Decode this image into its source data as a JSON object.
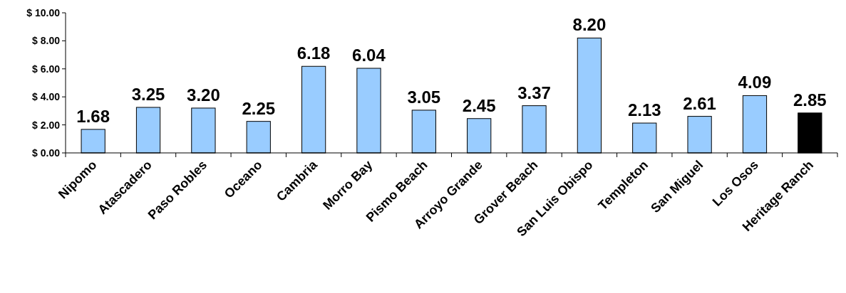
{
  "chart_data": {
    "type": "bar",
    "categories": [
      "Nipomo",
      "Atascadero",
      "Paso Robles",
      "Oceano",
      "Cambria",
      "Morro Bay",
      "Pismo Beach",
      "Arroyo Grande",
      "Grover Beach",
      "San Luis Obispo",
      "Templeton",
      "San Miguel",
      "Los Osos",
      "Heritage Ranch"
    ],
    "values": [
      1.68,
      3.25,
      3.2,
      2.25,
      6.18,
      6.04,
      3.05,
      2.45,
      3.37,
      8.2,
      2.13,
      2.61,
      4.09,
      2.85
    ],
    "value_labels": [
      "1.68",
      "3.25",
      "3.20",
      "2.25",
      "6.18",
      "6.04",
      "3.05",
      "2.45",
      "3.37",
      "8.20",
      "2.13",
      "2.61",
      "4.09",
      "2.85"
    ],
    "colors": [
      "#99ccff",
      "#99ccff",
      "#99ccff",
      "#99ccff",
      "#99ccff",
      "#99ccff",
      "#99ccff",
      "#99ccff",
      "#99ccff",
      "#99ccff",
      "#99ccff",
      "#99ccff",
      "#99ccff",
      "#000000"
    ],
    "ylim": [
      0,
      10
    ],
    "yticks": [
      {
        "value": 0,
        "label": "$ 0.00"
      },
      {
        "value": 2,
        "label": "$ 2.00"
      },
      {
        "value": 4,
        "label": "$ 4.00"
      },
      {
        "value": 6,
        "label": "$ 6.00"
      },
      {
        "value": 8,
        "label": "$ 8.00"
      },
      {
        "value": 10,
        "label": "$ 10.00"
      }
    ],
    "grid": false
  }
}
